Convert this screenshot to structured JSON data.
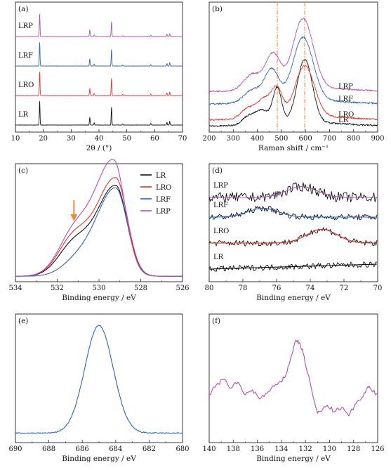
{
  "chart_data": [
    {
      "panel": "(a)",
      "type": "line",
      "xlabel": "2θ / (°)",
      "ylabel": "",
      "xlim": [
        10,
        70
      ],
      "xticks": [
        10,
        20,
        30,
        40,
        50,
        60,
        70
      ],
      "colors": {
        "LR": "#111111",
        "LRO": "#e8312a",
        "LRF": "#2f64b6",
        "LRP": "#b04fb6"
      },
      "series": [
        {
          "name": "LR",
          "offset": 0,
          "peaks": [
            [
              18.7,
              1.0
            ],
            [
              36.7,
              0.33
            ],
            [
              38.3,
              0.1
            ],
            [
              44.5,
              0.75
            ],
            [
              48.5,
              0.05
            ],
            [
              58.6,
              0.07
            ],
            [
              64.4,
              0.12
            ],
            [
              65.4,
              0.16
            ]
          ]
        },
        {
          "name": "LRO",
          "offset": 1,
          "peaks": [
            [
              18.7,
              1.0
            ],
            [
              36.7,
              0.3
            ],
            [
              38.3,
              0.09
            ],
            [
              44.5,
              0.72
            ],
            [
              48.5,
              0.05
            ],
            [
              58.6,
              0.06
            ],
            [
              64.4,
              0.11
            ],
            [
              65.4,
              0.14
            ]
          ]
        },
        {
          "name": "LRF",
          "offset": 2,
          "peaks": [
            [
              18.7,
              1.0
            ],
            [
              36.7,
              0.3
            ],
            [
              38.3,
              0.08
            ],
            [
              44.5,
              0.7
            ],
            [
              48.5,
              0.05
            ],
            [
              58.6,
              0.06
            ],
            [
              64.4,
              0.11
            ],
            [
              65.4,
              0.15
            ]
          ]
        },
        {
          "name": "LRP",
          "offset": 3,
          "peaks": [
            [
              18.7,
              0.95
            ],
            [
              36.7,
              0.28
            ],
            [
              38.3,
              0.07
            ],
            [
              44.5,
              0.62
            ],
            [
              48.5,
              0.04
            ],
            [
              58.6,
              0.05
            ],
            [
              64.4,
              0.1
            ],
            [
              65.4,
              0.13
            ]
          ]
        }
      ]
    },
    {
      "panel": "(b)",
      "type": "line",
      "xlabel": "Raman shift / cm⁻¹",
      "ylabel": "",
      "xlim": [
        200,
        900
      ],
      "xticks": [
        200,
        300,
        400,
        500,
        600,
        700,
        800,
        900
      ],
      "reference_lines": [
        483,
        597
      ],
      "reference_color": "#f08a3c",
      "colors": {
        "LR": "#111111",
        "LRO": "#e8312a",
        "LRF": "#2f64b6",
        "LRP": "#b04fb6"
      },
      "series": [
        {
          "name": "LR",
          "baseline": 0.0,
          "peaks": [
            [
              360,
              0.12,
              25
            ],
            [
              420,
              0.22,
              30
            ],
            [
              483,
              0.55,
              18
            ],
            [
              597,
              1.0,
              32
            ]
          ]
        },
        {
          "name": "LRO",
          "baseline": 0.1,
          "peaks": [
            [
              360,
              0.15,
              28
            ],
            [
              430,
              0.3,
              32
            ],
            [
              483,
              0.4,
              22
            ],
            [
              597,
              0.8,
              40
            ]
          ]
        },
        {
          "name": "LRF",
          "baseline": 0.35,
          "peaks": [
            [
              380,
              0.2,
              35
            ],
            [
              460,
              0.5,
              30
            ],
            [
              590,
              1.0,
              42
            ]
          ]
        },
        {
          "name": "LRP",
          "baseline": 0.55,
          "peaks": [
            [
              380,
              0.25,
              35
            ],
            [
              465,
              0.55,
              30
            ],
            [
              590,
              1.1,
              42
            ]
          ]
        }
      ]
    },
    {
      "panel": "(c)",
      "type": "line",
      "xlabel": "Binding energy / eV",
      "ylabel": "",
      "xlim": [
        534,
        526
      ],
      "xticks": [
        526,
        528,
        530,
        532,
        534
      ],
      "legend": [
        "LR",
        "LRO",
        "LRF",
        "LRP"
      ],
      "legend_placement": "top-right",
      "arrow_at": 531.2,
      "arrow_color": "#f08a3c",
      "colors": {
        "LR": "#111111",
        "LRO": "#e8312a",
        "LRF": "#2f64b6",
        "LRP": "#b04fb6"
      },
      "series": [
        {
          "name": "LR",
          "main_peak": [
            529.2,
            0.72
          ],
          "second_peak": [
            531.2,
            0.25
          ]
        },
        {
          "name": "LRO",
          "main_peak": [
            529.2,
            0.78
          ],
          "second_peak": [
            531.2,
            0.3
          ]
        },
        {
          "name": "LRF",
          "main_peak": [
            529.2,
            0.7
          ],
          "second_peak": [
            531.0,
            0.12
          ]
        },
        {
          "name": "LRP",
          "main_peak": [
            529.3,
            0.92
          ],
          "second_peak": [
            531.2,
            0.33
          ]
        }
      ]
    },
    {
      "panel": "(d)",
      "type": "line",
      "xlabel": "Binding energy / eV",
      "ylabel": "",
      "xlim": [
        80,
        70
      ],
      "xticks": [
        80,
        78,
        76,
        74,
        72,
        70
      ],
      "series": [
        {
          "name": "LRP",
          "offset": 3,
          "peak": [
            74.5,
            0.55
          ],
          "fit_color": "#b04fb6"
        },
        {
          "name": "LRF",
          "offset": 2,
          "peak": [
            76.8,
            0.45
          ],
          "fit_color": "#2f64b6"
        },
        {
          "name": "LRO",
          "offset": 1,
          "peak": [
            73.3,
            0.7
          ],
          "fit_color": "#e8312a"
        },
        {
          "name": "LR",
          "offset": 0,
          "peak": [
            71.0,
            0.1
          ],
          "fit_color": "#111111"
        }
      ]
    },
    {
      "panel": "(e)",
      "type": "line",
      "xlabel": "Binding energy / eV",
      "ylabel": "",
      "xlim": [
        690,
        680
      ],
      "xticks": [
        690,
        688,
        686,
        684,
        682,
        680
      ],
      "color": "#2f64b6",
      "peak": [
        685.0,
        1.0
      ],
      "peak_width": 0.85
    },
    {
      "panel": "(f)",
      "type": "line",
      "xlabel": "Binding energy / eV",
      "ylabel": "",
      "xlim": [
        140,
        126
      ],
      "xticks": [
        140,
        138,
        136,
        134,
        132,
        130,
        128,
        126
      ],
      "color": "#b04fb6",
      "x": [
        140,
        139.4,
        138.8,
        138.2,
        137.6,
        137.0,
        136.4,
        135.8,
        135.2,
        134.6,
        134.0,
        133.6,
        133.2,
        132.8,
        132.5,
        132.2,
        131.8,
        131.4,
        131.0,
        130.6,
        130.2,
        129.6,
        129.0,
        128.4,
        127.8,
        127.2,
        126.8,
        126.5,
        126.0
      ],
      "y": [
        0.3,
        0.42,
        0.48,
        0.38,
        0.45,
        0.3,
        0.36,
        0.25,
        0.32,
        0.4,
        0.45,
        0.55,
        0.75,
        0.95,
        0.92,
        0.8,
        0.55,
        0.3,
        0.08,
        0.12,
        0.18,
        0.1,
        0.15,
        0.05,
        0.2,
        0.28,
        0.4,
        0.35,
        0.3
      ]
    }
  ]
}
